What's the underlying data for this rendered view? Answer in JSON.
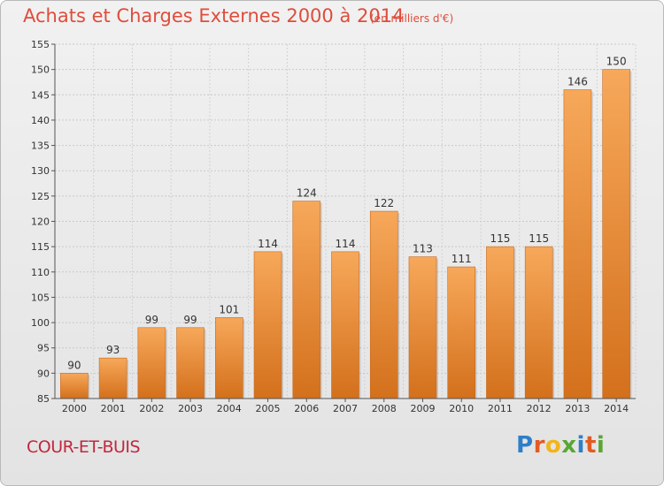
{
  "header": {
    "title": "Achats et Charges Externes 2000 à 2014",
    "subtitle": "(en milliers d'€)"
  },
  "footer": {
    "town": "COUR-ET-BUIS",
    "logo_letters": [
      {
        "ch": "P",
        "color": "#2f7fc8"
      },
      {
        "ch": "r",
        "color": "#e25b24"
      },
      {
        "ch": "o",
        "color": "#f2b51a"
      },
      {
        "ch": "x",
        "color": "#5aa635"
      },
      {
        "ch": "i",
        "color": "#2f7fc8"
      },
      {
        "ch": "t",
        "color": "#e25b24"
      },
      {
        "ch": "i",
        "color": "#5aa635"
      }
    ]
  },
  "chart_data": {
    "type": "bar",
    "title": "Achats et Charges Externes 2000 à 2014",
    "subtitle": "(en milliers d'€)",
    "categories": [
      "2000",
      "2001",
      "2002",
      "2003",
      "2004",
      "2005",
      "2006",
      "2007",
      "2008",
      "2009",
      "2010",
      "2011",
      "2012",
      "2013",
      "2014"
    ],
    "values": [
      90,
      93,
      99,
      99,
      101,
      114,
      124,
      114,
      122,
      113,
      111,
      115,
      115,
      146,
      150
    ],
    "ylim": [
      85,
      155
    ],
    "yticks": [
      85,
      90,
      95,
      100,
      105,
      110,
      115,
      120,
      125,
      130,
      135,
      140,
      145,
      150,
      155
    ],
    "grid": true,
    "bar_color_top": "#f7a85a",
    "bar_color_bottom": "#d3701c"
  }
}
